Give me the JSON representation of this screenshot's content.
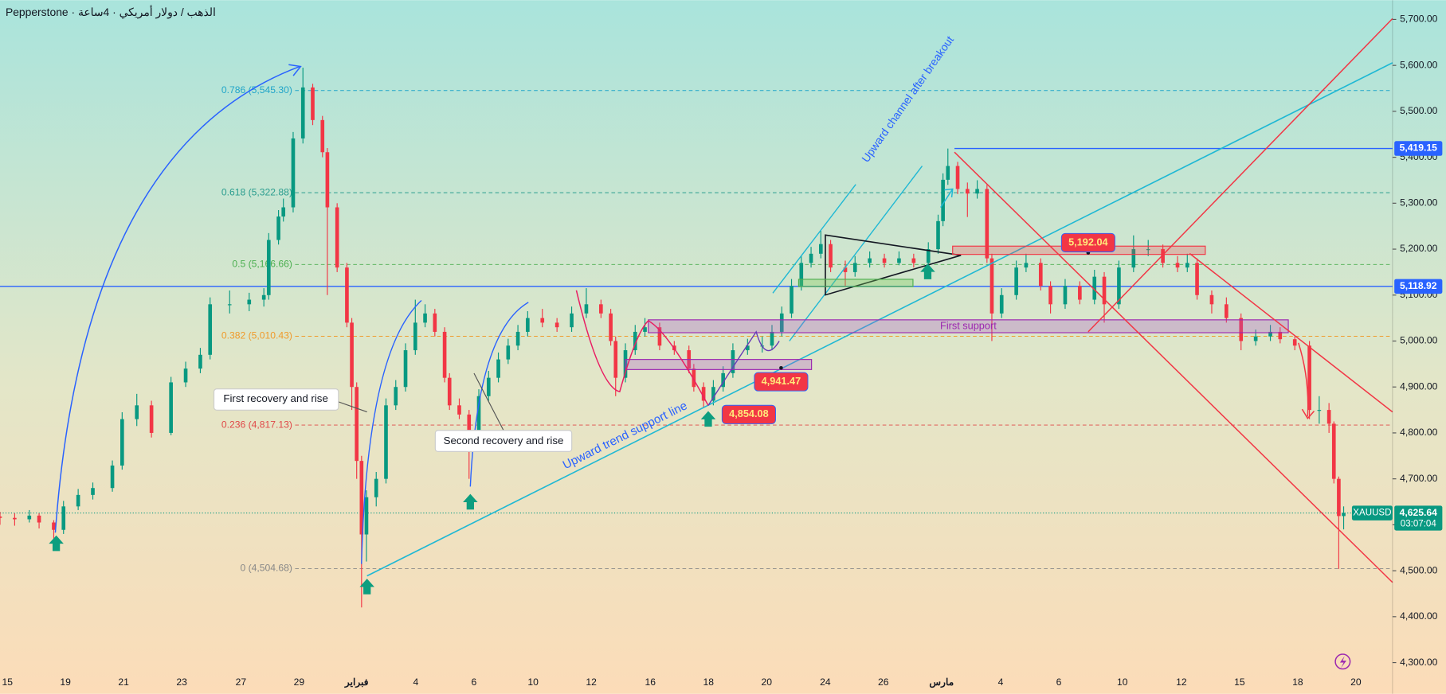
{
  "chart_data": {
    "type": "candlestick",
    "title": "Pepperstone · الذهب / دولار أمريكي · 4ساعة",
    "up_color": "#089981",
    "down_color": "#f23645",
    "x": [
      0,
      3,
      6,
      8,
      11,
      13,
      16,
      19,
      23,
      25,
      28,
      31,
      35,
      38,
      41,
      43,
      47,
      51,
      54,
      55,
      57,
      58,
      60,
      62,
      64,
      66,
      67,
      69,
      71,
      72,
      73,
      74,
      75,
      77,
      79,
      81,
      83,
      85,
      87,
      89,
      91,
      92,
      94,
      96,
      98,
      100,
      102,
      104,
      106,
      108,
      111,
      114,
      117,
      120,
      123,
      125,
      126,
      128,
      130,
      132,
      135,
      138,
      141,
      142,
      144,
      146,
      148,
      150,
      153,
      156,
      158,
      160,
      162,
      164,
      166,
      168,
      170,
      173,
      175,
      178,
      181,
      184,
      187,
      190,
      192,
      193,
      194,
      196,
      198,
      200,
      202,
      203,
      205,
      208,
      210,
      213,
      215,
      218,
      221,
      224,
      226,
      229,
      232,
      235,
      238,
      241,
      243,
      245,
      248,
      251,
      254,
      257,
      260,
      262,
      265,
      268,
      270,
      272,
      273,
      274,
      275
    ],
    "open": [
      4618,
      4615,
      4612,
      4620,
      4605,
      4589,
      4640,
      4665,
      4680,
      4729,
      4830,
      4860,
      4800,
      4910,
      4940,
      4970,
      5080,
      5080,
      5090,
      5100,
      5220,
      5271,
      5291,
      5441,
      5552,
      5481,
      5411,
      5291,
      5160,
      5040,
      4900,
      4739,
      4579,
      4660,
      4700,
      4860,
      4900,
      4980,
      5040,
      5060,
      5020,
      4920,
      4860,
      4840,
      4780,
      4880,
      4920,
      4960,
      4990,
      5020,
      5050,
      5040,
      5030,
      5060,
      5080,
      5060,
      5000,
      4920,
      4980,
      5020,
      5030,
      4990,
      4980,
      4940,
      4900,
      4870,
      4900,
      4930,
      4980,
      4990,
      4990,
      5020,
      5060,
      5120,
      5170,
      5190,
      5211,
      5160,
      5150,
      5170,
      5180,
      5170,
      5180,
      5170,
      5200,
      5261,
      5351,
      5381,
      5331,
      5321,
      5331,
      5180,
      5060,
      5100,
      5160,
      5170,
      5120,
      5080,
      5120,
      5090,
      5140,
      5080,
      5160,
      5200,
      5200,
      5170,
      5160,
      5170,
      5100,
      5080,
      5050,
      5000,
      5010,
      5020,
      5004,
      4990,
      4850,
      4850,
      4820,
      4700,
      4619
    ],
    "high": [
      4628,
      4625,
      4632,
      4625,
      4610,
      4652,
      4678,
      4692,
      4740,
      4845,
      4885,
      4870,
      4922,
      4955,
      4985,
      5095,
      5110,
      5105,
      5115,
      5235,
      5285,
      5310,
      5455,
      5595,
      5560,
      5490,
      5420,
      5300,
      5170,
      5050,
      4910,
      4750,
      4675,
      4715,
      4875,
      4915,
      4995,
      5090,
      5080,
      5070,
      5030,
      4930,
      4875,
      4850,
      4895,
      4935,
      4975,
      5005,
      5035,
      5065,
      5070,
      5050,
      5075,
      5115,
      5090,
      5070,
      5010,
      4995,
      5035,
      5050,
      5040,
      5000,
      4990,
      4950,
      4910,
      4915,
      4945,
      4995,
      5005,
      5010,
      5035,
      5075,
      5135,
      5185,
      5205,
      5240,
      5220,
      5175,
      5185,
      5195,
      5190,
      5195,
      5190,
      5215,
      5275,
      5365,
      5419,
      5390,
      5345,
      5350,
      5340,
      5190,
      5115,
      5175,
      5190,
      5180,
      5130,
      5135,
      5130,
      5155,
      5150,
      5175,
      5230,
      5220,
      5210,
      5185,
      5190,
      5180,
      5110,
      5095,
      5060,
      5025,
      5035,
      5030,
      5010,
      5000,
      4880,
      4865,
      4825,
      4705,
      4640
    ],
    "low": [
      4600,
      4598,
      4605,
      4592,
      4560,
      4580,
      4632,
      4655,
      4672,
      4720,
      4815,
      4790,
      4795,
      4900,
      4930,
      4960,
      5060,
      5065,
      5075,
      5090,
      5210,
      5260,
      5280,
      5430,
      5470,
      5400,
      5100,
      5150,
      5030,
      4850,
      4700,
      4420,
      4520,
      4640,
      4690,
      4850,
      4890,
      4970,
      5030,
      5010,
      4910,
      4850,
      4830,
      4700,
      4770,
      4870,
      4910,
      4950,
      4980,
      5010,
      5030,
      5020,
      5020,
      5050,
      5050,
      4990,
      4880,
      4910,
      4970,
      5010,
      4980,
      4970,
      4930,
      4890,
      4854,
      4860,
      4890,
      4920,
      4970,
      4975,
      4980,
      5010,
      5050,
      5110,
      5160,
      5180,
      5150,
      5120,
      5140,
      5160,
      5160,
      5165,
      5160,
      5160,
      5190,
      5250,
      5340,
      5320,
      5270,
      5310,
      5170,
      5000,
      5050,
      5090,
      5150,
      5110,
      5060,
      5070,
      5080,
      5080,
      5040,
      5070,
      5150,
      5185,
      5160,
      5150,
      5150,
      5090,
      5060,
      5040,
      4980,
      4990,
      5000,
      4995,
      4980,
      4830,
      4820,
      4800,
      4690,
      4504,
      4590
    ],
    "close": [
      4615,
      4612,
      4620,
      4605,
      4589,
      4640,
      4665,
      4680,
      4729,
      4830,
      4860,
      4800,
      4910,
      4940,
      4970,
      5080,
      5080,
      5090,
      5100,
      5220,
      5271,
      5291,
      5441,
      5552,
      5481,
      5411,
      5291,
      5160,
      5040,
      4900,
      4739,
      4579,
      4660,
      4700,
      4860,
      4900,
      4980,
      5040,
      5060,
      5020,
      4920,
      4860,
      4840,
      4780,
      4880,
      4920,
      4960,
      4990,
      5020,
      5050,
      5040,
      5030,
      5060,
      5080,
      5060,
      5000,
      4920,
      4980,
      5020,
      5030,
      4990,
      4980,
      4940,
      4900,
      4870,
      4900,
      4930,
      4980,
      4990,
      4990,
      5020,
      5060,
      5120,
      5170,
      5190,
      5211,
      5160,
      5150,
      5170,
      5180,
      5170,
      5180,
      5170,
      5200,
      5261,
      5351,
      5381,
      5331,
      5321,
      5331,
      5180,
      5060,
      5100,
      5160,
      5170,
      5120,
      5080,
      5120,
      5090,
      5140,
      5080,
      5160,
      5200,
      5200,
      5170,
      5160,
      5170,
      5100,
      5080,
      5050,
      5000,
      5010,
      5020,
      5004,
      4990,
      4850,
      4850,
      4820,
      4700,
      4619,
      4625.64
    ],
    "xlim": [
      0,
      285
    ],
    "xticks": [
      {
        "value": 1.5,
        "label": "15"
      },
      {
        "value": 13.4,
        "label": "19"
      },
      {
        "value": 25.3,
        "label": "21"
      },
      {
        "value": 37.2,
        "label": "23"
      },
      {
        "value": 49.3,
        "label": "27"
      },
      {
        "value": 61.2,
        "label": "29"
      },
      {
        "value": 73,
        "label": "فبراير"
      },
      {
        "value": 85.1,
        "label": "4"
      },
      {
        "value": 97,
        "label": "6"
      },
      {
        "value": 109.1,
        "label": "10"
      },
      {
        "value": 121,
        "label": "12"
      },
      {
        "value": 133.1,
        "label": "16"
      },
      {
        "value": 145,
        "label": "18"
      },
      {
        "value": 156.9,
        "label": "20"
      },
      {
        "value": 168.9,
        "label": "24"
      },
      {
        "value": 180.8,
        "label": "26"
      },
      {
        "value": 192.7,
        "label": "مارس"
      },
      {
        "value": 204.8,
        "label": "4"
      },
      {
        "value": 216.7,
        "label": "6"
      },
      {
        "value": 229.7,
        "label": "10"
      },
      {
        "value": 241.8,
        "label": "12"
      },
      {
        "value": 253.7,
        "label": "15"
      },
      {
        "value": 265.6,
        "label": "18"
      },
      {
        "value": 277.5,
        "label": "20"
      }
    ],
    "ylim": [
      4232,
      5742
    ],
    "yticks": [
      {
        "value": 4300,
        "label": "4,300.00"
      },
      {
        "value": 4400,
        "label": "4,400.00"
      },
      {
        "value": 4500,
        "label": "4,500.00"
      },
      {
        "value": 4600,
        "label": "4,600.00"
      },
      {
        "value": 4700,
        "label": "4,700.00"
      },
      {
        "value": 4800,
        "label": "4,800.00"
      },
      {
        "value": 4900,
        "label": "4,900.00"
      },
      {
        "value": 5000,
        "label": "5,000.00"
      },
      {
        "value": 5100,
        "label": "5,100.00"
      },
      {
        "value": 5200,
        "label": "5,200.00"
      },
      {
        "value": 5300,
        "label": "5,300.00"
      },
      {
        "value": 5400,
        "label": "5,400.00"
      },
      {
        "value": 5500,
        "label": "5,500.00"
      },
      {
        "value": 5600,
        "label": "5,600.00"
      },
      {
        "value": 5700,
        "label": "5,700.00"
      }
    ],
    "fib_levels": [
      {
        "value": 5545.3,
        "label": "0.786 (5,545.30)",
        "color": "#22a5c9"
      },
      {
        "value": 5322.88,
        "label": "0.618 (5,322.88)",
        "color": "#2a9d8f"
      },
      {
        "value": 5166.66,
        "label": "0.5 (5,166.66)",
        "color": "#4caf50"
      },
      {
        "value": 5010.43,
        "label": "0.382 (5,010.43)",
        "color": "#f09a2a"
      },
      {
        "value": 4817.13,
        "label": "0.236 (4,817.13)",
        "color": "#e04848"
      },
      {
        "value": 4504.68,
        "label": "0 (4,504.68)",
        "color": "#888888"
      }
    ],
    "horizontal_lines": [
      {
        "value": 5419.15,
        "label": "5,419.15",
        "color": "#2962ff"
      },
      {
        "value": 5118.92,
        "label": "5,118.92",
        "color": "#2962ff"
      }
    ],
    "last_price": {
      "symbol": "XAUUSD",
      "value": 4625.64,
      "label": "4,625.64",
      "countdown": "03:07:04",
      "color": "#089981"
    },
    "price_labels": [
      {
        "value": 5192.04,
        "label": "5,192.04"
      },
      {
        "value": 4941.47,
        "label": "4,941.47"
      },
      {
        "value": 4854.08,
        "label": "4,854.08"
      }
    ],
    "annotations": [
      "First recovery and rise",
      "Second recovery and rise",
      "Upward trend support line",
      "Upward channel after breakout",
      "First support"
    ]
  }
}
